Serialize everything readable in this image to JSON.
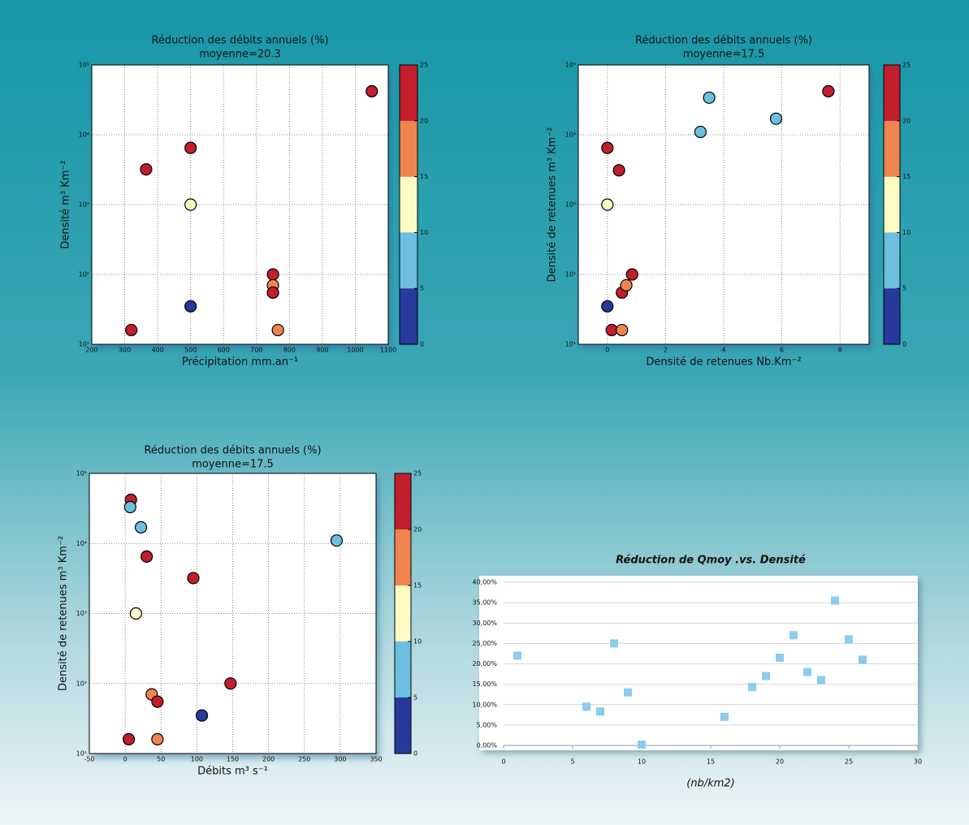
{
  "chart_data": [
    {
      "type": "scatter",
      "title": "Réduction des débits annuels (%)",
      "subtitle": "moyenne=20.3",
      "xlabel": "Précipitation mm.an⁻¹",
      "ylabel": "Densité  m³ Km⁻²",
      "ylog": true,
      "grid": "both",
      "marker": "circle",
      "xlim": [
        200,
        1100
      ],
      "xticks": [
        200,
        300,
        400,
        500,
        600,
        700,
        800,
        900,
        1000,
        1100
      ],
      "ylim": [
        10,
        100000
      ],
      "yticks": [
        {
          "value": 10,
          "label": "10¹"
        },
        {
          "value": 100,
          "label": "10²"
        },
        {
          "value": 1000,
          "label": "10³"
        },
        {
          "value": 10000,
          "label": "10⁴"
        },
        {
          "value": 100000,
          "label": "10⁵"
        }
      ],
      "colorbar": {
        "lim": [
          0,
          25
        ],
        "ticks": [
          0,
          5,
          10,
          15,
          20,
          25
        ],
        "colors": [
          "#27399a",
          "#6cbfe0",
          "#fbfbc3",
          "#f0844e",
          "#c21e2c"
        ]
      },
      "x": [
        320,
        365,
        500,
        500,
        500,
        750,
        750,
        750,
        765,
        1050
      ],
      "y": [
        16,
        3200,
        6500,
        1000,
        35,
        100,
        70,
        55,
        16,
        42000
      ],
      "c": [
        22.5,
        22.5,
        22.5,
        12.5,
        2.5,
        22.5,
        17.5,
        22.5,
        17.5,
        22.5
      ]
    },
    {
      "type": "scatter",
      "title": "Réduction des débits annuels (%)",
      "subtitle": "moyenne=17.5",
      "xlabel": "Densité de retenues  Nb.Km⁻²",
      "ylabel": "Densité de retenues m³ Km⁻²",
      "ylog": true,
      "grid": "both",
      "marker": "circle",
      "xlim": [
        -1,
        9
      ],
      "xticks": [
        0,
        2,
        4,
        6,
        8
      ],
      "ylim": [
        10,
        100000
      ],
      "yticks": [
        {
          "value": 10,
          "label": "10¹"
        },
        {
          "value": 100,
          "label": "10²"
        },
        {
          "value": 1000,
          "label": "10³"
        },
        {
          "value": 10000,
          "label": "10⁴"
        },
        {
          "value": 100000,
          "label": "10⁵"
        }
      ],
      "colorbar": {
        "lim": [
          0,
          25
        ],
        "ticks": [
          0,
          5,
          10,
          15,
          20,
          25
        ],
        "colors": [
          "#27399a",
          "#6cbfe0",
          "#fbfbc3",
          "#f0844e",
          "#c21e2c"
        ]
      },
      "x": [
        0.0,
        0.4,
        0.0,
        0.0,
        0.15,
        0.5,
        0.5,
        0.65,
        0.85,
        3.2,
        3.5,
        5.8,
        7.6
      ],
      "y": [
        6500,
        3100,
        1000,
        35,
        16,
        16,
        55,
        70,
        100,
        11000,
        34000,
        17000,
        42000
      ],
      "c": [
        22.5,
        22.5,
        12.5,
        2.5,
        22.5,
        17.5,
        22.5,
        17.5,
        22.5,
        7.5,
        7.5,
        7.5,
        22.5
      ]
    },
    {
      "type": "scatter",
      "title": "Réduction des débits annuels (%)",
      "subtitle": "moyenne=17.5",
      "xlabel": "Débits  m³ s⁻¹",
      "ylabel": "Densité de retenues m³ Km⁻²",
      "ylog": true,
      "grid": "both",
      "marker": "circle",
      "xlim": [
        -50,
        350
      ],
      "xticks": [
        -50,
        0,
        50,
        100,
        150,
        200,
        250,
        300,
        350
      ],
      "ylim": [
        10,
        100000
      ],
      "yticks": [
        {
          "value": 10,
          "label": "10¹"
        },
        {
          "value": 100,
          "label": "10²"
        },
        {
          "value": 1000,
          "label": "10³"
        },
        {
          "value": 10000,
          "label": "10⁴"
        },
        {
          "value": 100000,
          "label": "10⁵"
        }
      ],
      "colorbar": {
        "lim": [
          0,
          25
        ],
        "ticks": [
          0,
          5,
          10,
          15,
          20,
          25
        ],
        "colors": [
          "#27399a",
          "#6cbfe0",
          "#fbfbc3",
          "#f0844e",
          "#c21e2c"
        ]
      },
      "x": [
        5,
        8,
        7,
        22,
        30,
        95,
        15,
        37,
        45,
        45,
        107,
        147,
        295
      ],
      "y": [
        16,
        42000,
        33000,
        17000,
        6500,
        3200,
        1000,
        70,
        55,
        16,
        35,
        100,
        11000
      ],
      "c": [
        22.5,
        22.5,
        7.5,
        7.5,
        22.5,
        22.5,
        12.5,
        17.5,
        22.5,
        17.5,
        2.5,
        22.5,
        7.5
      ]
    },
    {
      "type": "scatter",
      "title": "Réduction de Qmoy .vs. Densité",
      "xlabel": "(nb/km2)",
      "ylog": false,
      "grid": "y",
      "marker": "square",
      "color": "#8cccef",
      "xlim": [
        0,
        30
      ],
      "xticks": [
        0,
        5,
        10,
        15,
        20,
        25,
        30
      ],
      "ylim": [
        0,
        40
      ],
      "yticks": [
        {
          "value": 0,
          "label": "0,00%"
        },
        {
          "value": 5,
          "label": "5,00%"
        },
        {
          "value": 10,
          "label": "10,00%"
        },
        {
          "value": 15,
          "label": "15,00%"
        },
        {
          "value": 20,
          "label": "20,00%"
        },
        {
          "value": 25,
          "label": "25,00%"
        },
        {
          "value": 30,
          "label": "30,00%"
        },
        {
          "value": 35,
          "label": "35,00%"
        },
        {
          "value": 40,
          "label": "40,00%"
        }
      ],
      "x": [
        1,
        6,
        7,
        8,
        9,
        10,
        16,
        18,
        19,
        20,
        21,
        22,
        23,
        24,
        25,
        26
      ],
      "y": [
        22,
        9.5,
        8.3,
        25,
        13,
        0.2,
        7,
        14.3,
        17,
        21.5,
        27,
        18,
        16,
        35.5,
        26,
        21
      ]
    }
  ]
}
